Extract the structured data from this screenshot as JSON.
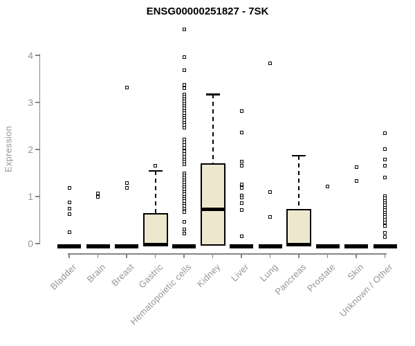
{
  "title": "ENSG00000251827 - 7SK",
  "axes": {
    "y_label": "Expression",
    "y_ticks": [
      0,
      1,
      2,
      3,
      4
    ]
  },
  "style": {
    "background": "#ffffff",
    "box_fill": "#ede8cd",
    "box_border": "#000000",
    "axis_color": "#848484",
    "text_color": "#949494",
    "title_color": "#000000"
  },
  "chart_data": {
    "type": "boxplot",
    "title": "ENSG00000251827 - 7SK",
    "xlabel": "",
    "ylabel": "Expression",
    "ylim": [
      0,
      4.6
    ],
    "y_ticks": [
      0,
      1,
      2,
      3,
      4
    ],
    "grid": false,
    "categories": [
      "Bladder",
      "Brain",
      "Breast",
      "Gastric",
      "Hematopoietic cells",
      "Kidney",
      "Liver",
      "Lung",
      "Pancreas",
      "Prostate",
      "Skin",
      "Unknown / Other"
    ],
    "series": [
      {
        "name": "Bladder",
        "q1": 0,
        "median": 0,
        "q3": 0,
        "whisker_low": 0,
        "whisker_high": 0,
        "outliers": [
          1.18,
          0.87,
          0.74,
          0.62,
          0.25
        ]
      },
      {
        "name": "Brain",
        "q1": 0,
        "median": 0,
        "q3": 0,
        "whisker_low": 0,
        "whisker_high": 0,
        "outliers": [
          1.07,
          1.0
        ]
      },
      {
        "name": "Breast",
        "q1": 0,
        "median": 0,
        "q3": 0,
        "whisker_low": 0,
        "whisker_high": 0,
        "outliers": [
          3.31,
          1.28,
          1.18
        ]
      },
      {
        "name": "Gastric",
        "q1": 0,
        "median": 0,
        "q3": 0.65,
        "whisker_low": 0,
        "whisker_high": 1.55,
        "outliers": [
          1.65
        ]
      },
      {
        "name": "Hematopoietic cells",
        "q1": 0,
        "median": 0,
        "q3": 0,
        "whisker_low": 0,
        "whisker_high": 0,
        "outliers": [
          4.55,
          3.96,
          3.68,
          3.38,
          3.3,
          3.17,
          3.12,
          3.07,
          3.02,
          2.97,
          2.92,
          2.87,
          2.82,
          2.77,
          2.72,
          2.67,
          2.62,
          2.57,
          2.52,
          2.46,
          2.21,
          2.15,
          2.09,
          2.03,
          1.97,
          1.91,
          1.85,
          1.79,
          1.75,
          1.68,
          1.5,
          1.45,
          1.4,
          1.35,
          1.3,
          1.25,
          1.2,
          1.15,
          1.1,
          1.05,
          1.0,
          0.95,
          0.9,
          0.85,
          0.8,
          0.75,
          0.7,
          0.67,
          0.47,
          0.3,
          0.22
        ]
      },
      {
        "name": "Kidney",
        "q1": 0,
        "median": 0.73,
        "q3": 1.71,
        "whisker_low": 0,
        "whisker_high": 3.17,
        "outliers": []
      },
      {
        "name": "Liver",
        "q1": 0,
        "median": 0,
        "q3": 0,
        "whisker_low": 0,
        "whisker_high": 0,
        "outliers": [
          2.82,
          2.36,
          1.75,
          1.65,
          1.26,
          1.18,
          1.02,
          0.98,
          0.86,
          0.72,
          0.16
        ]
      },
      {
        "name": "Lung",
        "q1": 0,
        "median": 0,
        "q3": 0,
        "whisker_low": 0,
        "whisker_high": 0,
        "outliers": [
          3.83,
          1.09,
          0.57
        ]
      },
      {
        "name": "Pancreas",
        "q1": 0,
        "median": 0,
        "q3": 0.74,
        "whisker_low": 0,
        "whisker_high": 1.87,
        "outliers": []
      },
      {
        "name": "Prostate",
        "q1": 0,
        "median": 0,
        "q3": 0,
        "whisker_low": 0,
        "whisker_high": 0,
        "outliers": [
          1.22
        ]
      },
      {
        "name": "Skin",
        "q1": 0,
        "median": 0,
        "q3": 0,
        "whisker_low": 0,
        "whisker_high": 0,
        "outliers": [
          1.62,
          1.33
        ]
      },
      {
        "name": "Unknown / Other",
        "q1": 0,
        "median": 0,
        "q3": 0,
        "whisker_low": 0,
        "whisker_high": 0,
        "outliers": [
          2.34,
          2.01,
          1.79,
          1.65,
          1.4,
          1.01,
          0.96,
          0.91,
          0.86,
          0.81,
          0.76,
          0.71,
          0.66,
          0.61,
          0.56,
          0.51,
          0.45,
          0.37,
          0.23,
          0.14
        ]
      }
    ]
  }
}
